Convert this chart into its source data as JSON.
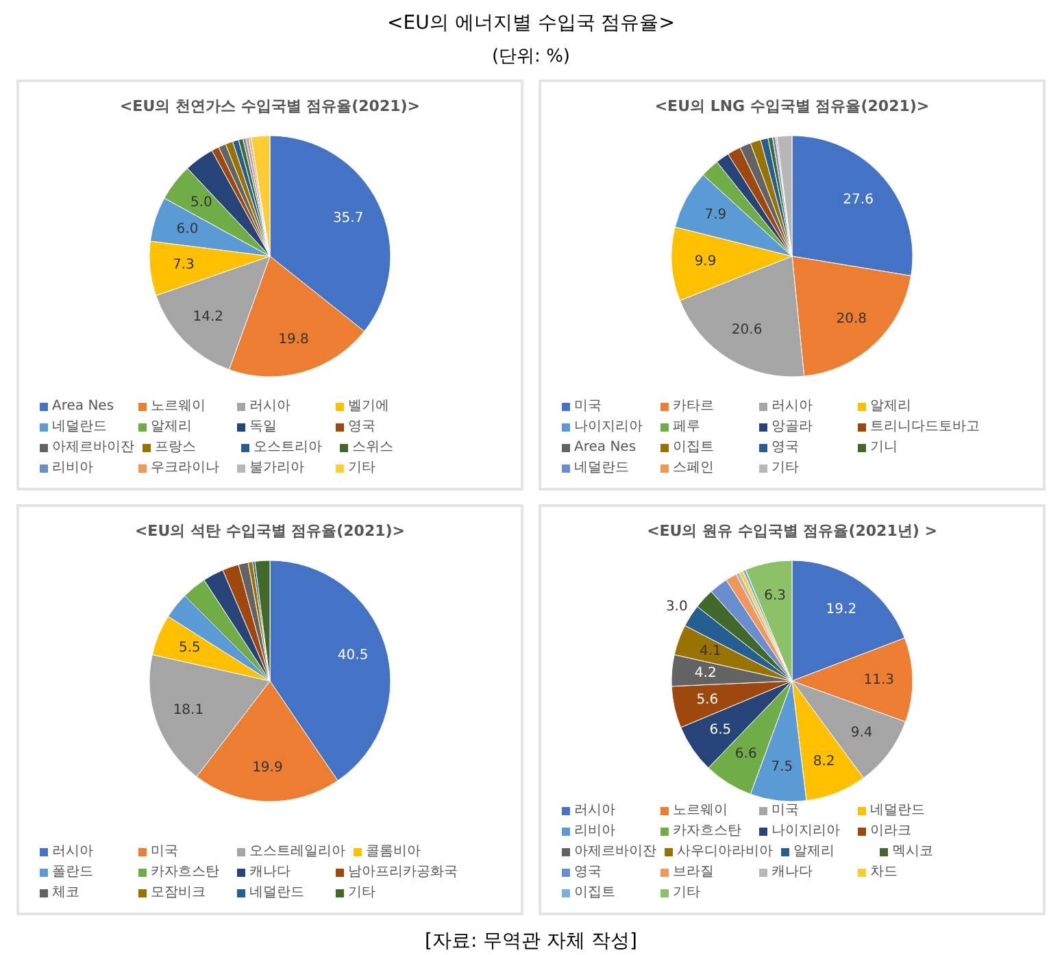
{
  "chart_data": [
    {
      "type": "other",
      "title": "<EU의 에너지별 수입국 점유율>",
      "subtitle": "(단위: %)",
      "annotations": [
        "[자료: 무역관 자체 작성]"
      ]
    },
    {
      "type": "pie",
      "title": "<EU의 천연가스 수입국별 점유율(2021)>",
      "legend": "bottom",
      "categories": [
        "Area Nes",
        "노르웨이",
        "러시아",
        "벨기에",
        "네덜란드",
        "알제리",
        "독일",
        "영국",
        "아제르바이잔",
        "프랑스",
        "오스트리아",
        "스위스",
        "리비아",
        "우크라이나",
        "불가리아",
        "기타"
      ],
      "values": [
        35.7,
        19.8,
        14.2,
        7.3,
        6.0,
        5.0,
        4.0,
        1.0,
        1.0,
        1.0,
        0.8,
        0.6,
        0.4,
        0.4,
        0.3,
        2.5
      ],
      "value_labels": [
        "35.7",
        "19.8",
        "14.2",
        "7.3",
        "6.0",
        "5.0",
        null,
        null,
        null,
        null,
        null,
        null,
        null,
        null,
        null,
        null
      ],
      "colors": [
        "#4472c4",
        "#ed7d31",
        "#a5a5a5",
        "#ffc000",
        "#5b9bd5",
        "#70ad47",
        "#264478",
        "#9e480e",
        "#636363",
        "#997300",
        "#255e91",
        "#43682b",
        "#698ed0",
        "#f1975a",
        "#b7b7b7",
        "#ffcd33"
      ]
    },
    {
      "type": "pie",
      "title": "<EU의 LNG 수입국별 점유율(2021)>",
      "legend": "bottom",
      "categories": [
        "미국",
        "카타르",
        "러시아",
        "알제리",
        "나이지리아",
        "페루",
        "앙골라",
        "트리니다드토바고",
        "Area Nes",
        "이집트",
        "영국",
        "기니",
        "네덜란드",
        "스페인",
        "기타"
      ],
      "values": [
        27.6,
        20.8,
        20.6,
        9.9,
        7.9,
        2.5,
        1.8,
        1.8,
        1.5,
        1.4,
        1.0,
        0.6,
        0.4,
        0.2,
        2.0
      ],
      "value_labels": [
        "27.6",
        "20.8",
        "20.6",
        "9.9",
        "7.9",
        null,
        null,
        null,
        null,
        null,
        null,
        null,
        null,
        null,
        null
      ],
      "colors": [
        "#4472c4",
        "#ed7d31",
        "#a5a5a5",
        "#ffc000",
        "#5b9bd5",
        "#70ad47",
        "#264478",
        "#9e480e",
        "#636363",
        "#997300",
        "#255e91",
        "#43682b",
        "#698ed0",
        "#f1975a",
        "#b7b7b7"
      ]
    },
    {
      "type": "pie",
      "title": "<EU의 석탄 수입국별 점유율(2021)>",
      "legend": "bottom",
      "categories": [
        "러시아",
        "미국",
        "오스트레일리아",
        "콜롬비아",
        "폴란드",
        "카자흐스탄",
        "캐나다",
        "남아프리카공화국",
        "체코",
        "모잠비크",
        "네덜란드",
        "기타"
      ],
      "values": [
        40.5,
        19.9,
        18.1,
        5.5,
        3.5,
        3.3,
        2.8,
        2.2,
        1.3,
        0.6,
        0.3,
        2.0
      ],
      "value_labels": [
        "40.5",
        "19.9",
        "18.1",
        "5.5",
        null,
        null,
        null,
        null,
        null,
        null,
        null,
        null
      ],
      "colors": [
        "#4472c4",
        "#ed7d31",
        "#a5a5a5",
        "#ffc000",
        "#5b9bd5",
        "#70ad47",
        "#264478",
        "#9e480e",
        "#636363",
        "#997300",
        "#255e91",
        "#43682b"
      ]
    },
    {
      "type": "pie",
      "title": "<EU의 원유 수입국별 점유율(2021년) >",
      "legend": "bottom",
      "categories": [
        "러시아",
        "노르웨이",
        "미국",
        "네덜란드",
        "리비아",
        "카자흐스탄",
        "나이지리아",
        "이라크",
        "아제르바이잔",
        "사우디아라비아",
        "알제리",
        "멕시코",
        "영국",
        "브라질",
        "캐나다",
        "차드",
        "이집트",
        "기타"
      ],
      "values": [
        19.2,
        11.3,
        9.4,
        8.2,
        7.5,
        6.6,
        6.5,
        5.6,
        4.2,
        4.1,
        3.0,
        2.7,
        2.5,
        1.5,
        0.5,
        0.5,
        0.4,
        6.3
      ],
      "value_labels": [
        "19.2",
        "11.3",
        "9.4",
        "8.2",
        "7.5",
        "6.6",
        "6.5",
        "5.6",
        "4.2",
        "4.1",
        "3.0",
        null,
        null,
        null,
        null,
        null,
        null,
        "6.3"
      ],
      "colors": [
        "#4472c4",
        "#ed7d31",
        "#a5a5a5",
        "#ffc000",
        "#5b9bd5",
        "#70ad47",
        "#264478",
        "#9e480e",
        "#636363",
        "#997300",
        "#255e91",
        "#43682b",
        "#698ed0",
        "#f1975a",
        "#b7b7b7",
        "#ffcd33",
        "#7cafdd",
        "#8cc168"
      ]
    }
  ]
}
